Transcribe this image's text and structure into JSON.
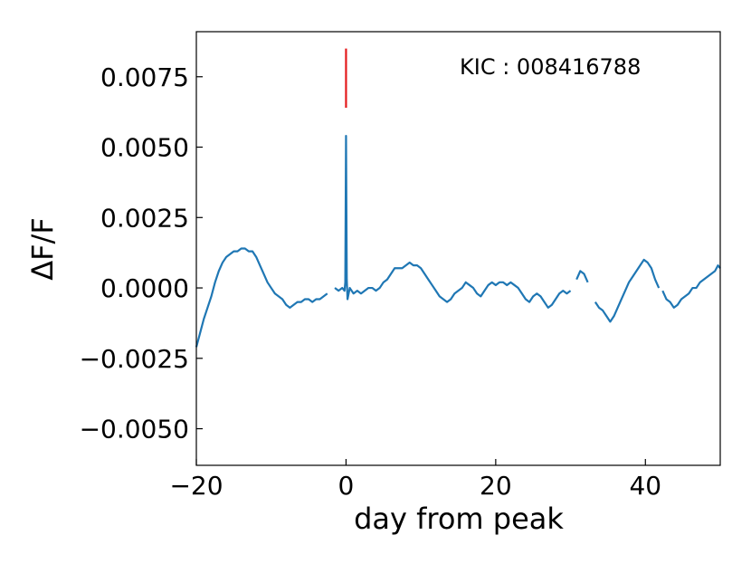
{
  "chart_data": {
    "type": "line",
    "title": "",
    "xlabel": "day from peak",
    "ylabel": "ΔF/F",
    "xlim": [
      -20,
      50
    ],
    "ylim": [
      -0.0063,
      0.0091
    ],
    "x_ticks": [
      -20,
      0,
      20,
      40
    ],
    "x_tick_labels": [
      "−20",
      "0",
      "20",
      "40"
    ],
    "y_ticks": [
      -0.005,
      -0.0025,
      0.0,
      0.0025,
      0.005,
      0.0075
    ],
    "y_tick_labels": [
      "−0.0050",
      "−0.0025",
      "0.0000",
      "0.0025",
      "0.0050",
      "0.0075"
    ],
    "grid": false,
    "annotation": "KIC : 008416788",
    "marker": {
      "x": 0,
      "y_range": [
        0.0064,
        0.0085
      ],
      "color": "#e41a1c"
    },
    "series": [
      {
        "color": "#1f77b4",
        "segments": [
          [
            [
              -20,
              -0.0021
            ],
            [
              -19.5,
              -0.0016
            ],
            [
              -19,
              -0.0011
            ],
            [
              -18.5,
              -0.0007
            ],
            [
              -18,
              -0.0003
            ],
            [
              -17.5,
              0.0002
            ],
            [
              -17,
              0.0006
            ],
            [
              -16.5,
              0.0009
            ],
            [
              -16,
              0.0011
            ],
            [
              -15.5,
              0.0012
            ],
            [
              -15,
              0.0013
            ],
            [
              -14.5,
              0.0013
            ],
            [
              -14,
              0.0014
            ],
            [
              -13.5,
              0.0014
            ],
            [
              -13,
              0.0013
            ],
            [
              -12.5,
              0.0013
            ],
            [
              -12,
              0.0011
            ],
            [
              -11.5,
              0.0008
            ],
            [
              -11,
              0.0005
            ],
            [
              -10.5,
              0.0002
            ],
            [
              -10,
              0.0
            ],
            [
              -9.5,
              -0.0002
            ],
            [
              -9,
              -0.0003
            ],
            [
              -8.5,
              -0.0004
            ],
            [
              -8,
              -0.0006
            ],
            [
              -7.5,
              -0.0007
            ],
            [
              -7,
              -0.0006
            ],
            [
              -6.5,
              -0.0005
            ],
            [
              -6,
              -0.0005
            ],
            [
              -5.5,
              -0.0004
            ],
            [
              -5,
              -0.0004
            ],
            [
              -4.5,
              -0.0005
            ],
            [
              -4,
              -0.0004
            ],
            [
              -3.5,
              -0.0004
            ],
            [
              -3,
              -0.0003
            ],
            [
              -2.5,
              -0.0002
            ]
          ],
          [
            [
              -1.5,
              0.0
            ],
            [
              -1,
              -0.0001
            ],
            [
              -0.5,
              0.0
            ],
            [
              -0.2,
              -0.0001
            ],
            [
              -0.1,
              0.0002
            ],
            [
              0,
              0.0054
            ],
            [
              0.1,
              0.0003
            ],
            [
              0.2,
              -0.0004
            ],
            [
              0.5,
              0.0
            ],
            [
              1,
              -0.0002
            ],
            [
              1.5,
              -0.0001
            ],
            [
              2,
              -0.0002
            ],
            [
              2.5,
              -0.0001
            ],
            [
              3,
              0.0
            ],
            [
              3.5,
              0.0
            ],
            [
              4,
              -0.0001
            ],
            [
              4.5,
              0.0
            ],
            [
              5,
              0.0002
            ],
            [
              5.5,
              0.0003
            ],
            [
              6,
              0.0005
            ],
            [
              6.5,
              0.0007
            ],
            [
              7,
              0.0007
            ],
            [
              7.5,
              0.0007
            ],
            [
              8,
              0.0008
            ],
            [
              8.5,
              0.0009
            ],
            [
              9,
              0.0008
            ],
            [
              9.5,
              0.0008
            ],
            [
              10,
              0.0007
            ],
            [
              10.5,
              0.0005
            ],
            [
              11,
              0.0003
            ],
            [
              11.5,
              0.0001
            ],
            [
              12,
              -0.0001
            ],
            [
              12.5,
              -0.0003
            ],
            [
              13,
              -0.0004
            ],
            [
              13.5,
              -0.0005
            ],
            [
              14,
              -0.0004
            ],
            [
              14.5,
              -0.0002
            ],
            [
              15,
              -0.0001
            ],
            [
              15.5,
              0.0
            ],
            [
              16,
              0.0002
            ],
            [
              16.5,
              0.0001
            ],
            [
              17,
              0.0
            ],
            [
              17.5,
              -0.0002
            ],
            [
              18,
              -0.0003
            ],
            [
              18.5,
              -0.0001
            ],
            [
              19,
              0.0001
            ],
            [
              19.5,
              0.0002
            ],
            [
              20,
              0.0001
            ],
            [
              20.5,
              0.0002
            ],
            [
              21,
              0.0002
            ],
            [
              21.5,
              0.0001
            ],
            [
              22,
              0.0002
            ],
            [
              22.5,
              0.0001
            ],
            [
              23,
              0.0
            ],
            [
              23.5,
              -0.0002
            ],
            [
              24,
              -0.0004
            ],
            [
              24.5,
              -0.0005
            ],
            [
              25,
              -0.0003
            ],
            [
              25.5,
              -0.0002
            ],
            [
              26,
              -0.0003
            ],
            [
              26.5,
              -0.0005
            ],
            [
              27,
              -0.0007
            ],
            [
              27.5,
              -0.0006
            ],
            [
              28,
              -0.0004
            ],
            [
              28.5,
              -0.0002
            ],
            [
              29,
              -0.0001
            ],
            [
              29.5,
              -0.0002
            ],
            [
              30,
              -0.0001
            ]
          ],
          [
            [
              30.8,
              0.0003
            ],
            [
              31.3,
              0.0006
            ],
            [
              31.8,
              0.0005
            ],
            [
              32.3,
              0.0002
            ]
          ],
          [
            [
              33.3,
              -0.0005
            ],
            [
              33.8,
              -0.0007
            ],
            [
              34.3,
              -0.0008
            ],
            [
              34.8,
              -0.001
            ],
            [
              35.3,
              -0.0012
            ],
            [
              35.8,
              -0.001
            ],
            [
              36.3,
              -0.0007
            ],
            [
              36.8,
              -0.0004
            ],
            [
              37.3,
              -0.0001
            ],
            [
              37.8,
              0.0002
            ],
            [
              38.3,
              0.0004
            ],
            [
              38.8,
              0.0006
            ],
            [
              39.3,
              0.0008
            ],
            [
              39.8,
              0.001
            ],
            [
              40.3,
              0.0009
            ],
            [
              40.8,
              0.0007
            ],
            [
              41.3,
              0.0003
            ],
            [
              41.8,
              0.0
            ]
          ],
          [
            [
              42.3,
              -0.0001
            ],
            [
              42.8,
              -0.0004
            ],
            [
              43.3,
              -0.0005
            ],
            [
              43.8,
              -0.0007
            ],
            [
              44.3,
              -0.0006
            ],
            [
              44.8,
              -0.0004
            ],
            [
              45.3,
              -0.0003
            ],
            [
              45.8,
              -0.0002
            ],
            [
              46.3,
              0.0
            ],
            [
              46.8,
              0.0
            ],
            [
              47.3,
              0.0002
            ],
            [
              47.8,
              0.0003
            ],
            [
              48.3,
              0.0004
            ],
            [
              48.8,
              0.0005
            ],
            [
              49.3,
              0.0006
            ],
            [
              49.7,
              0.0008
            ],
            [
              50,
              0.0007
            ]
          ]
        ]
      }
    ]
  }
}
